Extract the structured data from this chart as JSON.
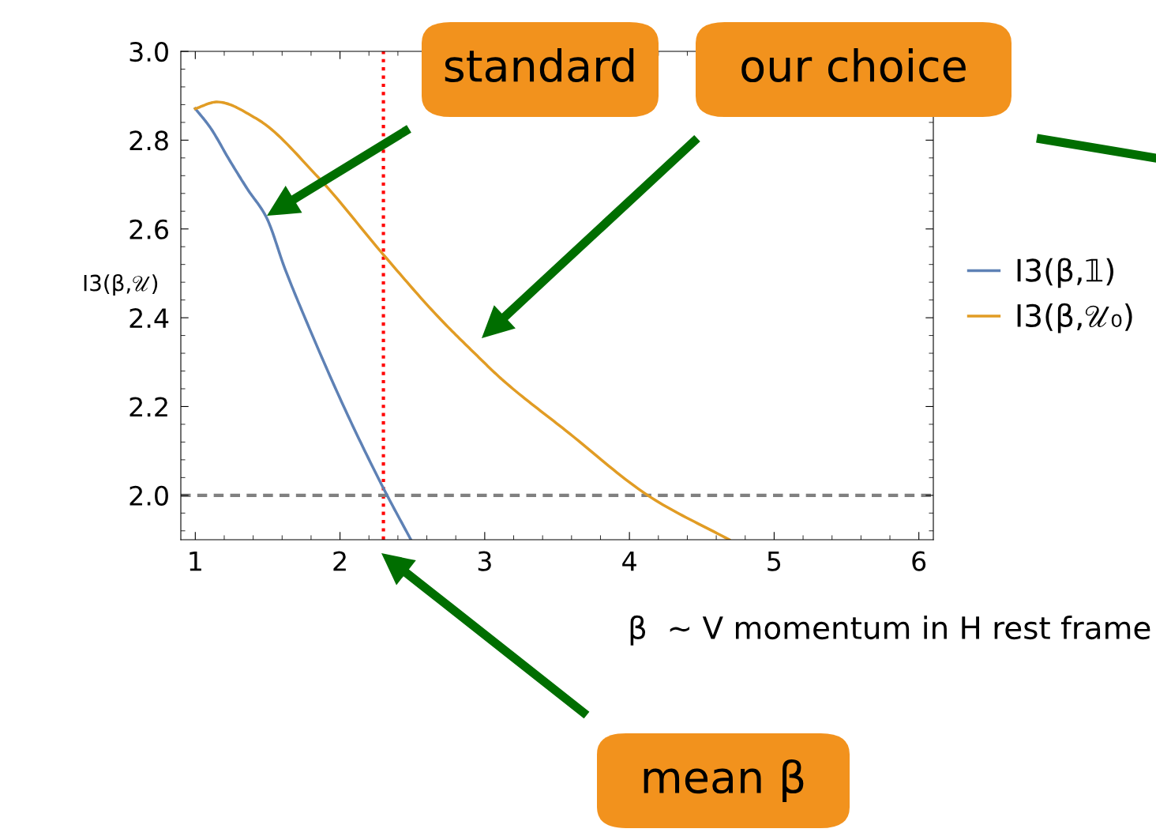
{
  "chart_data": {
    "type": "line",
    "xlabel": "β  ~ V momentum in H rest frame",
    "ylabel": "I3(β,𝒰)",
    "xlim": [
      0.9,
      6.1
    ],
    "ylim": [
      1.9,
      3.0
    ],
    "xticks": [
      1,
      2,
      3,
      4,
      5,
      6
    ],
    "yticks": [
      {
        "value": 2.0,
        "label": "2.0"
      },
      {
        "value": 2.2,
        "label": "2.2"
      },
      {
        "value": 2.4,
        "label": "2.4"
      },
      {
        "value": 2.6,
        "label": "2.6"
      },
      {
        "value": 2.8,
        "label": "2.8"
      },
      {
        "value": 3.0,
        "label": "3.0"
      }
    ],
    "grid": false,
    "legend": "right",
    "marker": "none",
    "line_style": "solid",
    "series": [
      {
        "name": "I3(β,𝟙)",
        "color": "#5e81b5",
        "x": [
          1.0,
          1.1,
          1.24,
          1.36,
          1.49,
          1.62,
          1.76,
          2.04,
          2.3,
          2.49
        ],
        "values": [
          2.871,
          2.83,
          2.753,
          2.69,
          2.627,
          2.51,
          2.398,
          2.19,
          2.016,
          1.9
        ]
      },
      {
        "name": "I3(β,𝒰₀)",
        "color": "#e19c24",
        "x": [
          1.0,
          1.15,
          1.42,
          1.85,
          2.3,
          2.67,
          2.93,
          3.13,
          3.56,
          4.15,
          4.69
        ],
        "values": [
          2.871,
          2.886,
          2.849,
          2.716,
          2.542,
          2.405,
          2.32,
          2.258,
          2.146,
          1.995,
          1.9
        ]
      }
    ],
    "ref_lines": [
      {
        "axis": "x",
        "value": 2.3,
        "color": "#ff0000",
        "line_style": "dotted"
      },
      {
        "axis": "y",
        "value": 2.0,
        "color": "#808080",
        "line_style": "dashed"
      }
    ],
    "annotations": [
      "standard",
      "our choice",
      "mean β"
    ]
  }
}
